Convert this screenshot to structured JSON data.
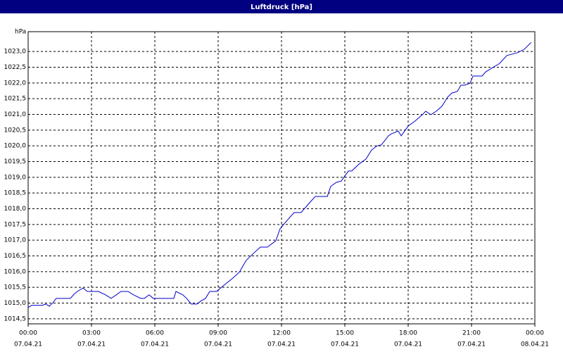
{
  "chart_data": {
    "type": "line",
    "title": "Luftdruck [hPa]",
    "ylabel": "hPa",
    "x": [
      0,
      0.17,
      0.67,
      0.83,
      1,
      1.17,
      1.33,
      2,
      2.17,
      2.33,
      2.6,
      2.8,
      3.33,
      3.67,
      3.93,
      4.17,
      4.4,
      4.73,
      5,
      5.33,
      5.5,
      5.73,
      5.93,
      6.67,
      6.9,
      7,
      7.33,
      7.5,
      7.73,
      8,
      8.17,
      8.4,
      8.6,
      8.93,
      9.17,
      9.67,
      10,
      10.33,
      10.67,
      11,
      11.33,
      11.73,
      11.93,
      12.33,
      12.6,
      12.93,
      13.33,
      13.6,
      14.17,
      14.33,
      14.6,
      14.83,
      15.17,
      15.33,
      15.67,
      16,
      16.27,
      16.53,
      16.73,
      17.07,
      17.2,
      17.53,
      17.67,
      17.83,
      18,
      18.33,
      18.67,
      18.83,
      19.07,
      19.33,
      19.6,
      19.87,
      20.07,
      20.33,
      20.5,
      20.67,
      20.93,
      21.07,
      21.5,
      21.67,
      21.93,
      22.33,
      22.67,
      23.17,
      23.5,
      23.83
    ],
    "series": [
      {
        "color": "#0000cc",
        "values": [
          1014.86,
          1014.93,
          1014.93,
          1014.97,
          1014.9,
          1015.01,
          1015.15,
          1015.15,
          1015.28,
          1015.37,
          1015.48,
          1015.37,
          1015.37,
          1015.26,
          1015.15,
          1015.26,
          1015.37,
          1015.37,
          1015.26,
          1015.15,
          1015.15,
          1015.26,
          1015.15,
          1015.15,
          1015.15,
          1015.37,
          1015.26,
          1015.15,
          1014.97,
          1014.97,
          1015.06,
          1015.15,
          1015.37,
          1015.37,
          1015.51,
          1015.78,
          1015.98,
          1016.36,
          1016.58,
          1016.78,
          1016.78,
          1016.98,
          1017.36,
          1017.68,
          1017.88,
          1017.88,
          1018.19,
          1018.39,
          1018.39,
          1018.71,
          1018.84,
          1018.88,
          1019.2,
          1019.2,
          1019.42,
          1019.58,
          1019.87,
          1020.0,
          1020.03,
          1020.32,
          1020.38,
          1020.47,
          1020.32,
          1020.47,
          1020.63,
          1020.79,
          1020.99,
          1021.1,
          1020.99,
          1021.1,
          1021.26,
          1021.55,
          1021.68,
          1021.73,
          1021.93,
          1021.93,
          1021.99,
          1022.22,
          1022.22,
          1022.35,
          1022.46,
          1022.62,
          1022.87,
          1022.96,
          1023.07,
          1023.29
        ]
      }
    ],
    "xlim": [
      0,
      24
    ],
    "ylim": [
      1014.34,
      1023.63
    ],
    "xticks": [
      {
        "value": 0,
        "label": "00:00",
        "date": "07.04.21"
      },
      {
        "value": 3,
        "label": "03:00",
        "date": "07.04.21"
      },
      {
        "value": 6,
        "label": "06:00",
        "date": "07.04.21"
      },
      {
        "value": 9,
        "label": "09:00",
        "date": "07.04.21"
      },
      {
        "value": 12,
        "label": "12:00",
        "date": "07.04.21"
      },
      {
        "value": 15,
        "label": "15:00",
        "date": "07.04.21"
      },
      {
        "value": 18,
        "label": "18:00",
        "date": "07.04.21"
      },
      {
        "value": 21,
        "label": "21:00",
        "date": "07.04.21"
      },
      {
        "value": 24,
        "label": "00:00",
        "date": "08.04.21"
      }
    ],
    "yticks": [
      {
        "value": 1014.5,
        "label": "1014,5"
      },
      {
        "value": 1015,
        "label": "1015,0"
      },
      {
        "value": 1015.5,
        "label": "1015,5"
      },
      {
        "value": 1016,
        "label": "1016,0"
      },
      {
        "value": 1016.5,
        "label": "1016,5"
      },
      {
        "value": 1017,
        "label": "1017,0"
      },
      {
        "value": 1017.5,
        "label": "1017,5"
      },
      {
        "value": 1018,
        "label": "1018,0"
      },
      {
        "value": 1018.5,
        "label": "1018,5"
      },
      {
        "value": 1019,
        "label": "1019,0"
      },
      {
        "value": 1019.5,
        "label": "1019,5"
      },
      {
        "value": 1020,
        "label": "1020,0"
      },
      {
        "value": 1020.5,
        "label": "1020,5"
      },
      {
        "value": 1021,
        "label": "1021,0"
      },
      {
        "value": 1021.5,
        "label": "1021,5"
      },
      {
        "value": 1022,
        "label": "1022,0"
      },
      {
        "value": 1022.5,
        "label": "1022,5"
      },
      {
        "value": 1023,
        "label": "1023,0"
      }
    ],
    "grid": true
  }
}
